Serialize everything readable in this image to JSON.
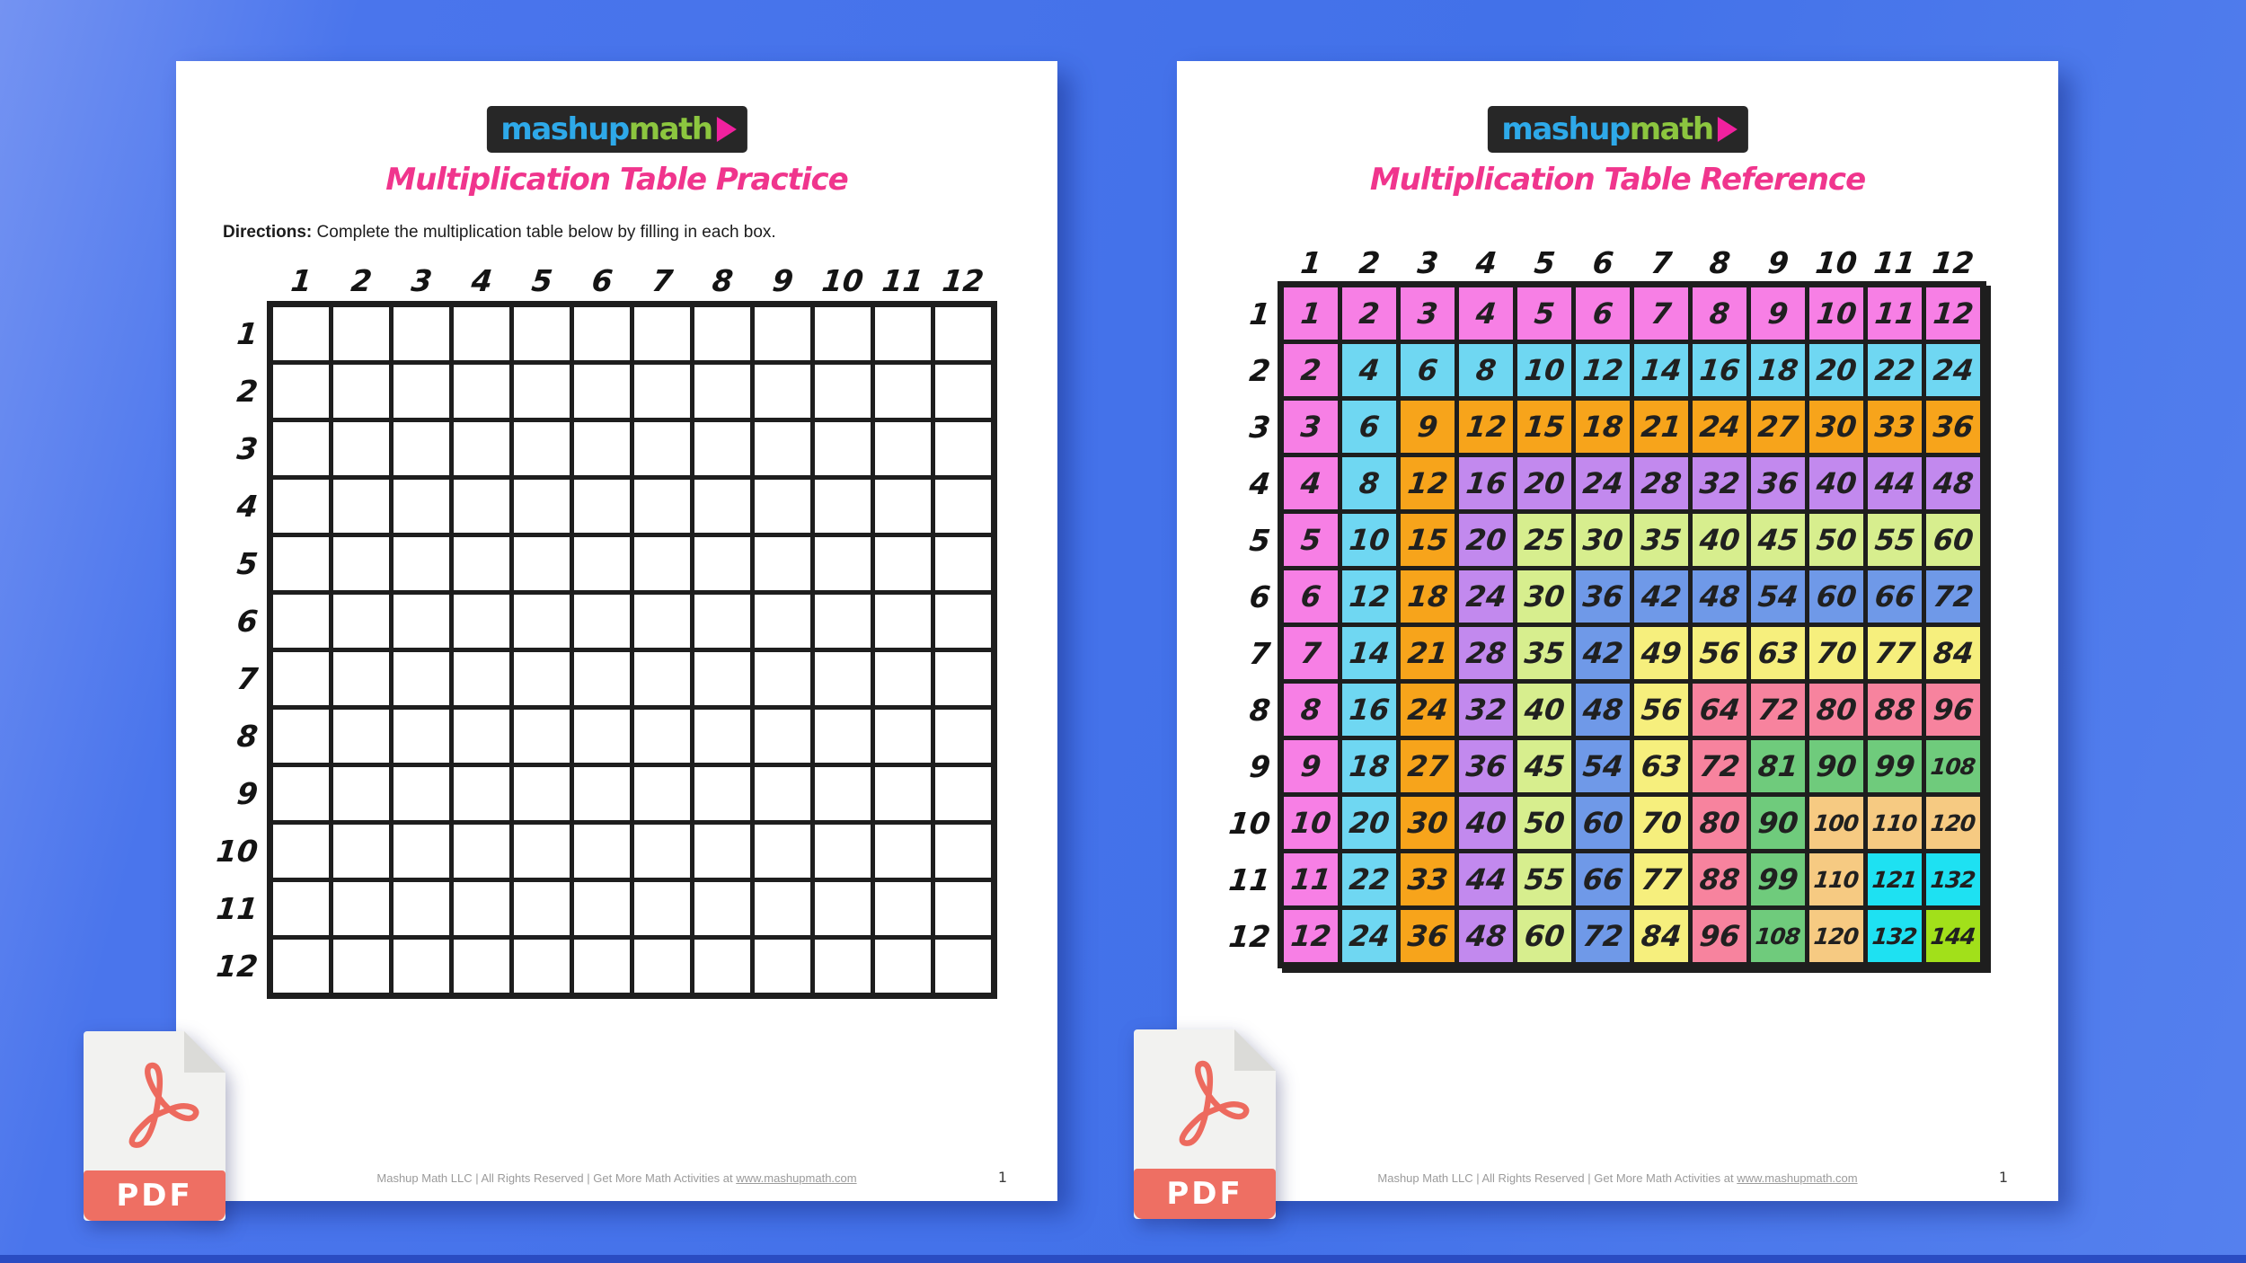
{
  "theme": {
    "background_blue": "#4a75ec",
    "background_blue_light": "#7493f2",
    "bottom_bar_color": "#2a4cc2",
    "title_pink": "#F0358D",
    "grid_line_color": "#1e1e1e",
    "page_background": "#ffffff"
  },
  "logo": {
    "part1": "mashup",
    "part2": "math",
    "part1_color": "#2EA9E9",
    "part2_color": "#8CC63F",
    "play_icon_color": "#F0219E",
    "background": "#272727"
  },
  "pdf_icon": {
    "label": "PDF",
    "accent_color": "#EE6F63",
    "paper_color": "#F2F2F0",
    "fold_color": "#DBDBD8"
  },
  "footer": {
    "text": "Mashup Math LLC | All Rights Reserved | Get More Math Activities at",
    "link": "www.mashupmath.com",
    "page_number": "1"
  },
  "pages": [
    {
      "title": "Multiplication Table Practice",
      "directions_label": "Directions:",
      "directions_text": "Complete the multiplication table below by filling in each box.",
      "col_headers": [
        "1",
        "2",
        "3",
        "4",
        "5",
        "6",
        "7",
        "8",
        "9",
        "10",
        "11",
        "12"
      ],
      "row_headers": [
        "1",
        "2",
        "3",
        "4",
        "5",
        "6",
        "7",
        "8",
        "9",
        "10",
        "11",
        "12"
      ],
      "filled": false
    },
    {
      "title": "Multiplication Table Reference",
      "col_headers": [
        "1",
        "2",
        "3",
        "4",
        "5",
        "6",
        "7",
        "8",
        "9",
        "10",
        "11",
        "12"
      ],
      "row_headers": [
        "1",
        "2",
        "3",
        "4",
        "5",
        "6",
        "7",
        "8",
        "9",
        "10",
        "11",
        "12"
      ],
      "filled": true,
      "color_rule": "cell color band = min(row, col)",
      "band_colors": [
        "#F77FE5",
        "#6FD7F2",
        "#F7A41B",
        "#C289EE",
        "#D7EE8E",
        "#6F99E8",
        "#F6EF7D",
        "#F7839E",
        "#6FCB7C",
        "#F6CA82",
        "#1EE1F2",
        "#A2E01A"
      ],
      "values": [
        [
          1,
          2,
          3,
          4,
          5,
          6,
          7,
          8,
          9,
          10,
          11,
          12
        ],
        [
          2,
          4,
          6,
          8,
          10,
          12,
          14,
          16,
          18,
          20,
          22,
          24
        ],
        [
          3,
          6,
          9,
          12,
          15,
          18,
          21,
          24,
          27,
          30,
          33,
          36
        ],
        [
          4,
          8,
          12,
          16,
          20,
          24,
          28,
          32,
          36,
          40,
          44,
          48
        ],
        [
          5,
          10,
          15,
          20,
          25,
          30,
          35,
          40,
          45,
          50,
          55,
          60
        ],
        [
          6,
          12,
          18,
          24,
          30,
          36,
          42,
          48,
          54,
          60,
          66,
          72
        ],
        [
          7,
          14,
          21,
          28,
          35,
          42,
          49,
          56,
          63,
          70,
          77,
          84
        ],
        [
          8,
          16,
          24,
          32,
          40,
          48,
          56,
          64,
          72,
          80,
          88,
          96
        ],
        [
          9,
          18,
          27,
          36,
          45,
          54,
          63,
          72,
          81,
          90,
          99,
          108
        ],
        [
          10,
          20,
          30,
          40,
          50,
          60,
          70,
          80,
          90,
          100,
          110,
          120
        ],
        [
          11,
          22,
          33,
          44,
          55,
          66,
          77,
          88,
          99,
          110,
          121,
          132
        ],
        [
          12,
          24,
          36,
          48,
          60,
          72,
          84,
          96,
          108,
          120,
          132,
          144
        ]
      ]
    }
  ]
}
